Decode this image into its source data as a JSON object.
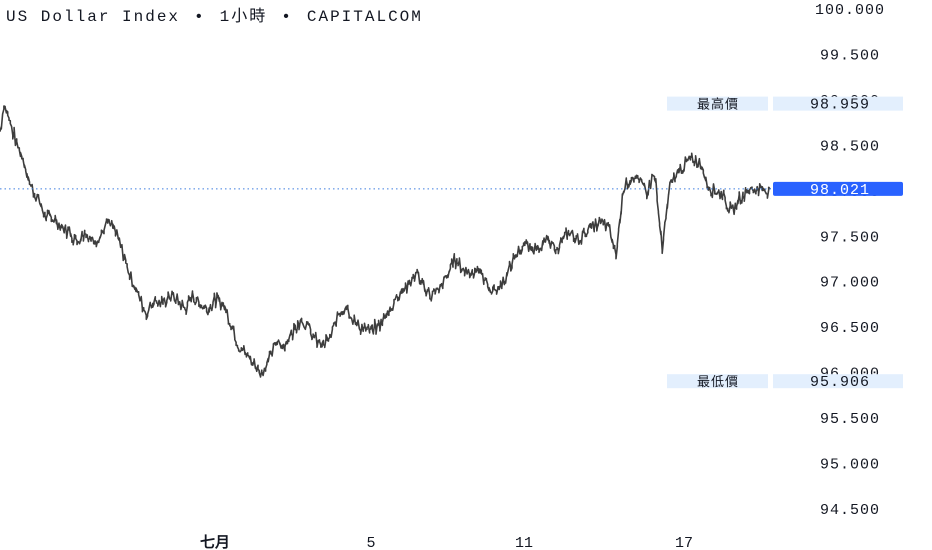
{
  "header": {
    "symbol": "US Dollar Index",
    "interval": "1小時",
    "source": "CAPITALCOM",
    "separator": "•"
  },
  "markers": {
    "high_label": "最高價",
    "high_value": "98.959",
    "low_label": "最低價",
    "low_value": "95.906",
    "current_value": "98.021"
  },
  "colors": {
    "background": "#ffffff",
    "price_line": "#3d3d3d",
    "axis_text": "#131722",
    "current_badge": "#2962ff",
    "marker_bg": "#e3effd",
    "dotted_line": "#3d7ee0"
  },
  "chart_data": {
    "type": "line",
    "title": "US Dollar Index • 1小時 • CAPITALCOM",
    "xlabel": "",
    "ylabel": "",
    "x_tick_labels": [
      "七月",
      "5",
      "11",
      "17"
    ],
    "y_tick_labels": [
      "100.000",
      "99.500",
      "99.000",
      "98.500",
      "98.000",
      "97.500",
      "97.000",
      "96.500",
      "96.000",
      "95.500",
      "95.000",
      "94.500"
    ],
    "ylim": [
      94.5,
      100.0
    ],
    "y_axis_side": "right",
    "grid": false,
    "high": 98.959,
    "low": 95.906,
    "last": 98.021,
    "series": [
      {
        "x": [
          0,
          0.5,
          1,
          2,
          3,
          4,
          5,
          6,
          7,
          8,
          9,
          10,
          11,
          12,
          13,
          14,
          15,
          16,
          17,
          18,
          19,
          20,
          21,
          22,
          23,
          24,
          25,
          26,
          27,
          28,
          29,
          30,
          31,
          32,
          33,
          34,
          35,
          36,
          37,
          38,
          39,
          40,
          41,
          42,
          43,
          44,
          45,
          46,
          47,
          48,
          49,
          50,
          51,
          52,
          53,
          54,
          55,
          56,
          57,
          58,
          59,
          60,
          61,
          62,
          63,
          64,
          65,
          66,
          67,
          68,
          69,
          70,
          71,
          72,
          73,
          74,
          75,
          76,
          77,
          78,
          79,
          80,
          81,
          82,
          83,
          84,
          85,
          86,
          87,
          88,
          89,
          90,
          91,
          92,
          93,
          94,
          95,
          96,
          97,
          98,
          99,
          100
        ],
        "y": [
          98.65,
          98.95,
          98.85,
          98.55,
          98.35,
          98.05,
          97.9,
          97.7,
          97.7,
          97.6,
          97.55,
          97.45,
          97.55,
          97.45,
          97.5,
          97.65,
          97.55,
          97.3,
          97.05,
          96.85,
          96.65,
          96.8,
          96.75,
          96.85,
          96.8,
          96.7,
          96.85,
          96.75,
          96.7,
          96.8,
          96.75,
          96.55,
          96.3,
          96.2,
          96.1,
          96.0,
          96.15,
          96.35,
          96.3,
          96.45,
          96.6,
          96.5,
          96.35,
          96.3,
          96.4,
          96.65,
          96.75,
          96.55,
          96.5,
          96.45,
          96.5,
          96.6,
          96.75,
          96.9,
          96.95,
          97.1,
          96.95,
          96.85,
          96.9,
          97.05,
          97.25,
          97.15,
          97.1,
          97.15,
          97.0,
          96.9,
          96.95,
          97.1,
          97.3,
          97.4,
          97.35,
          97.4,
          97.45,
          97.35,
          97.45,
          97.55,
          97.45,
          97.55,
          97.6,
          97.65,
          97.6,
          97.3,
          98.05,
          98.15,
          98.1,
          98.0,
          98.2,
          97.35,
          98.05,
          98.2,
          98.3,
          98.35,
          98.3,
          98.05,
          98.0,
          97.95,
          97.75,
          97.9,
          98.0,
          98.02,
          98.02,
          98.021
        ]
      }
    ]
  }
}
